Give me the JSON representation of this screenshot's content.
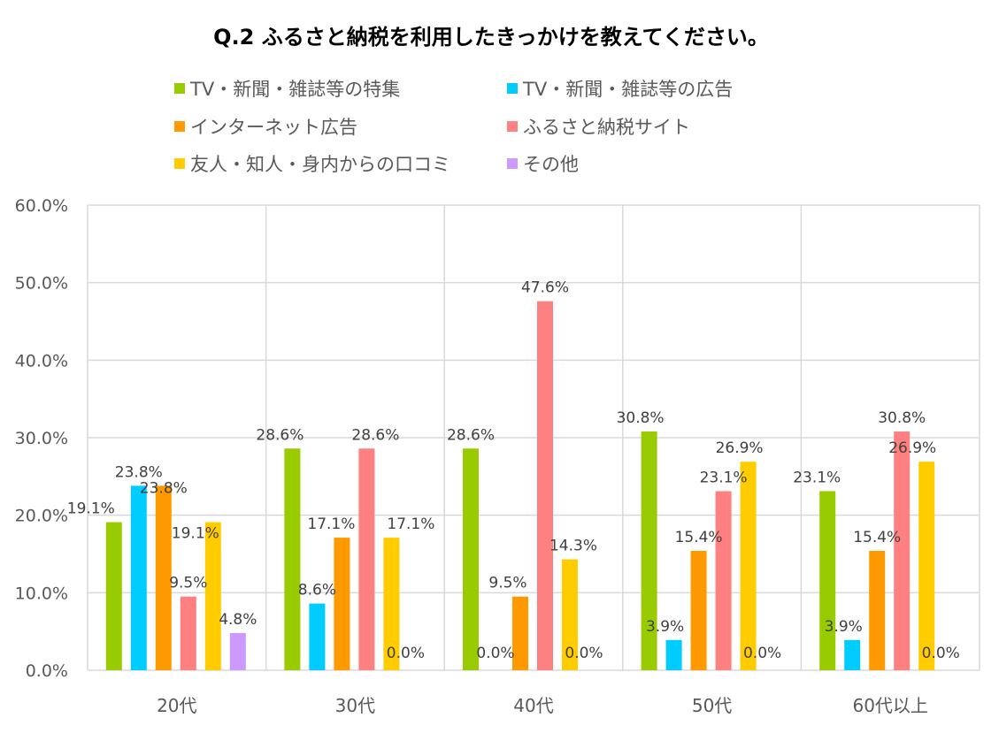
{
  "chart_data": {
    "type": "bar",
    "title": "Q.2 ふるさと納税を利用したきっかけを教えてください。",
    "categories": [
      "20代",
      "30代",
      "40代",
      "50代",
      "60代以上"
    ],
    "ylim": [
      0,
      60
    ],
    "yticks": [
      "0.0%",
      "10.0%",
      "20.0%",
      "30.0%",
      "40.0%",
      "50.0%",
      "60.0%"
    ],
    "grid": true,
    "legend_position": "top",
    "series": [
      {
        "name": "TV・新聞・雑誌等の特集",
        "color": "#99CC00",
        "values": [
          19.1,
          28.6,
          28.6,
          30.8,
          23.1
        ],
        "labels": [
          "19.1%",
          "28.6%",
          "28.6%",
          "30.8%",
          "23.1%"
        ]
      },
      {
        "name": "TV・新聞・雑誌等の広告",
        "color": "#00CCFF",
        "values": [
          23.8,
          8.6,
          0.0,
          3.9,
          3.9
        ],
        "labels": [
          "23.8%",
          "8.6%",
          "0.0%",
          "3.9%",
          "3.9%"
        ]
      },
      {
        "name": "インターネット広告",
        "color": "#FF9900",
        "values": [
          23.8,
          17.1,
          9.5,
          15.4,
          15.4
        ],
        "labels": [
          "23.8%",
          "17.1%",
          "9.5%",
          "15.4%",
          "15.4%"
        ]
      },
      {
        "name": "ふるさと納税サイト",
        "color": "#FF8080",
        "values": [
          9.5,
          28.6,
          47.6,
          23.1,
          30.8
        ],
        "labels": [
          "9.5%",
          "28.6%",
          "47.6%",
          "23.1%",
          "30.8%"
        ]
      },
      {
        "name": "友人・知人・身内からの口コミ",
        "color": "#FFCC00",
        "values": [
          19.1,
          17.1,
          14.3,
          26.9,
          26.9
        ],
        "labels": [
          "19.1%",
          "17.1%",
          "14.3%",
          "26.9%",
          "26.9%"
        ]
      },
      {
        "name": "その他",
        "color": "#CC99FF",
        "values": [
          4.8,
          0.0,
          0.0,
          0.0,
          0.0
        ],
        "labels": [
          "4.8%",
          "0.0%",
          "0.0%",
          "0.0%",
          "0.0%"
        ]
      }
    ]
  }
}
